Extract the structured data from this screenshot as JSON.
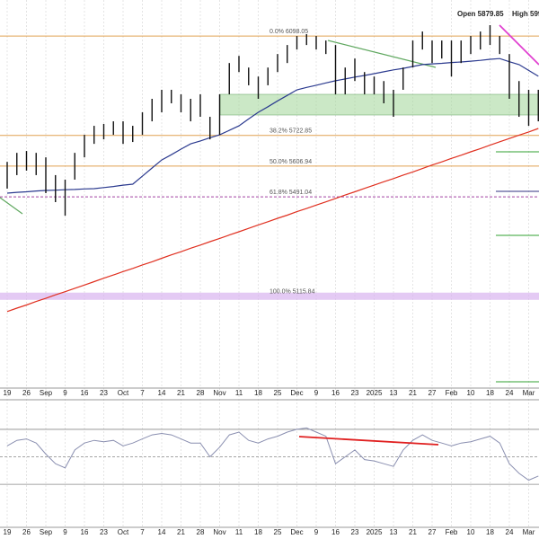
{
  "chart_data": {
    "type": "hilo",
    "header": [
      "Open 5879.85",
      "High 599"
    ],
    "categories": [
      "19",
      null,
      "26",
      null,
      "Sep",
      null,
      "9",
      null,
      "16",
      null,
      "23",
      null,
      "Oct",
      null,
      "7",
      null,
      "14",
      null,
      "21",
      null,
      "28",
      null,
      "Nov",
      null,
      "11",
      null,
      "18",
      null,
      "25",
      null,
      "Dec",
      null,
      "9",
      null,
      "16",
      null,
      "23",
      null,
      "2025",
      null,
      "13",
      null,
      "21",
      null,
      "27",
      null,
      "Feb",
      null,
      "10",
      null,
      "18",
      null,
      "24",
      null,
      "Mar",
      null
    ],
    "high": [
      5623,
      5657,
      5664,
      5657,
      5640,
      5573,
      5556,
      5657,
      5725,
      5759,
      5766,
      5776,
      5776,
      5759,
      5810,
      5861,
      5895,
      5895,
      5878,
      5861,
      5878,
      5793,
      5878,
      5996,
      6023,
      5979,
      5945,
      5979,
      6030,
      6064,
      6098,
      6105,
      6098,
      6081,
      6064,
      5979,
      6013,
      5962,
      5945,
      5928,
      5895,
      5979,
      6081,
      6115,
      6081,
      6081,
      6081,
      6081,
      6098,
      6115,
      6139,
      6098,
      6030,
      5928,
      5895,
      5895
    ],
    "low": [
      5522,
      5573,
      5590,
      5573,
      5505,
      5471,
      5420,
      5556,
      5640,
      5691,
      5708,
      5725,
      5691,
      5698,
      5725,
      5776,
      5810,
      5844,
      5810,
      5776,
      5793,
      5708,
      5725,
      5878,
      5962,
      5912,
      5861,
      5912,
      5962,
      5996,
      6047,
      6064,
      6047,
      6030,
      5878,
      5878,
      5928,
      5878,
      5878,
      5844,
      5793,
      5895,
      5979,
      6047,
      5996,
      6013,
      5945,
      5996,
      6030,
      6047,
      6064,
      6030,
      5861,
      5793,
      5759,
      5776
    ],
    "bar_color": "#111111",
    "ylim": [
      4776,
      6200
    ],
    "moving_averages": [
      {
        "color": "#2b3a8f",
        "values": [
          5505,
          5508,
          5510,
          5513,
          5515,
          5516,
          5518,
          5519,
          5521,
          5522,
          5526,
          5530,
          5535,
          5539,
          5569,
          5600,
          5630,
          5650,
          5671,
          5691,
          5702,
          5714,
          5725,
          5742,
          5759,
          5785,
          5810,
          5831,
          5853,
          5874,
          5895,
          5904,
          5912,
          5921,
          5929,
          5936,
          5943,
          5949,
          5956,
          5963,
          5970,
          5976,
          5983,
          5990,
          5993,
          5995,
          5998,
          6000,
          6003,
          6006,
          6010,
          6013,
          6001,
          5990,
          5968,
          5946
        ]
      },
      {
        "color": "#e03020",
        "values": [
          5058,
          5071,
          5083,
          5096,
          5108,
          5121,
          5133,
          5146,
          5158,
          5171,
          5184,
          5196,
          5209,
          5221,
          5234,
          5246,
          5259,
          5272,
          5284,
          5297,
          5309,
          5322,
          5334,
          5347,
          5359,
          5372,
          5385,
          5397,
          5410,
          5422,
          5435,
          5447,
          5460,
          5472,
          5485,
          5498,
          5510,
          5523,
          5535,
          5548,
          5560,
          5573,
          5585,
          5598,
          5611,
          5623,
          5636,
          5648,
          5661,
          5673,
          5686,
          5699,
          5711,
          5724,
          5736,
          5749
        ]
      }
    ],
    "fib_levels": [
      {
        "label": "0.0% 6098.05",
        "value": 6098.05,
        "color": "#e0a050",
        "style": "solid"
      },
      {
        "label": "38.2% 5722.85",
        "value": 5722.85,
        "color": "#e0a050",
        "style": "solid"
      },
      {
        "label": "50.0% 5606.94",
        "value": 5606.94,
        "color": "#e0a050",
        "style": "solid"
      },
      {
        "label": "61.8% 5491.04",
        "value": 5491.04,
        "color": "#a040a0",
        "style": "dashed"
      },
      {
        "label": "100.0% 5115.84",
        "value": 5115.84,
        "color": "#d9b3f0",
        "style": "band"
      }
    ],
    "rsi": {
      "color": "#8a8fb0",
      "ylim": [
        0,
        85
      ],
      "levels": [
        30,
        50,
        70
      ],
      "values": [
        58,
        62,
        63,
        60,
        52,
        45,
        42,
        55,
        60,
        62,
        61,
        62,
        58,
        60,
        63,
        66,
        67,
        66,
        63,
        60,
        60,
        50,
        57,
        66,
        68,
        62,
        60,
        63,
        65,
        68,
        70,
        71,
        68,
        65,
        45,
        50,
        55,
        48,
        47,
        45,
        43,
        55,
        62,
        66,
        62,
        60,
        58,
        60,
        61,
        63,
        65,
        60,
        45,
        38,
        33,
        36
      ]
    }
  }
}
